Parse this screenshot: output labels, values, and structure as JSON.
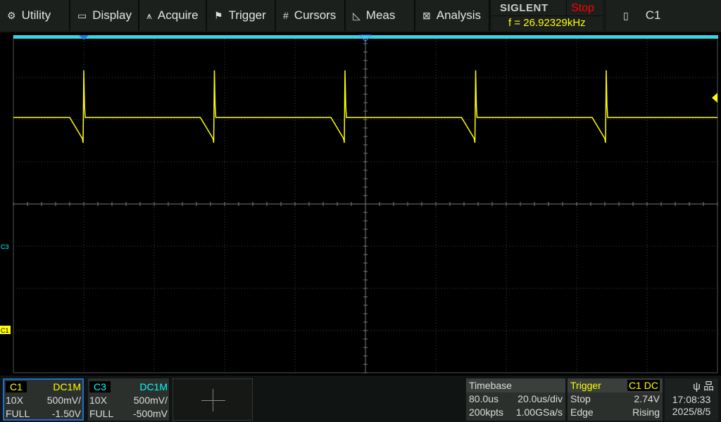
{
  "menu": [
    {
      "label": "Utility",
      "icon": "gear-icon",
      "glyph": "⚙"
    },
    {
      "label": "Display",
      "icon": "monitor-icon",
      "glyph": "🖵"
    },
    {
      "label": "Acquire",
      "icon": "acquire-icon",
      "glyph": "⩚"
    },
    {
      "label": "Trigger",
      "icon": "flag-icon",
      "glyph": "⚑"
    },
    {
      "label": "Cursors",
      "icon": "hash-icon",
      "glyph": "#"
    },
    {
      "label": "Meas",
      "icon": "triangle-ruler-icon",
      "glyph": "◺"
    },
    {
      "label": "Analysis",
      "icon": "analysis-icon",
      "glyph": "⊠"
    }
  ],
  "brand": {
    "logo": "SIGLENT",
    "run_state": "Stop",
    "frequency": "f = 26.92329kHz"
  },
  "active_channel": {
    "icon": "battery-icon",
    "label": "C1"
  },
  "markers": {
    "c3": "C3",
    "c1": "C1"
  },
  "colors": {
    "c1": "#ffff00",
    "c3": "#00ffff",
    "stop": "#ff0000",
    "accent": "#1e6fd0"
  },
  "channels": [
    {
      "name": "C1",
      "coupling": "DC1M",
      "probe": "10X",
      "scale": "500mV/",
      "bandwidth": "FULL",
      "offset": "-1.50V"
    },
    {
      "name": "C3",
      "coupling": "DC1M",
      "probe": "10X",
      "scale": "500mV/",
      "bandwidth": "FULL",
      "offset": "-500mV"
    }
  ],
  "timebase": {
    "title": "Timebase",
    "delay": "80.0us",
    "scale": "20.0us/div",
    "memory": "200kpts",
    "sample_rate": "1.00GSa/s"
  },
  "trigger": {
    "title": "Trigger",
    "source": "C1 DC",
    "state": "Stop",
    "level": "2.74V",
    "type": "Edge",
    "slope": "Rising"
  },
  "status": {
    "time": "17:08:33",
    "date": "2025/8/5"
  }
}
